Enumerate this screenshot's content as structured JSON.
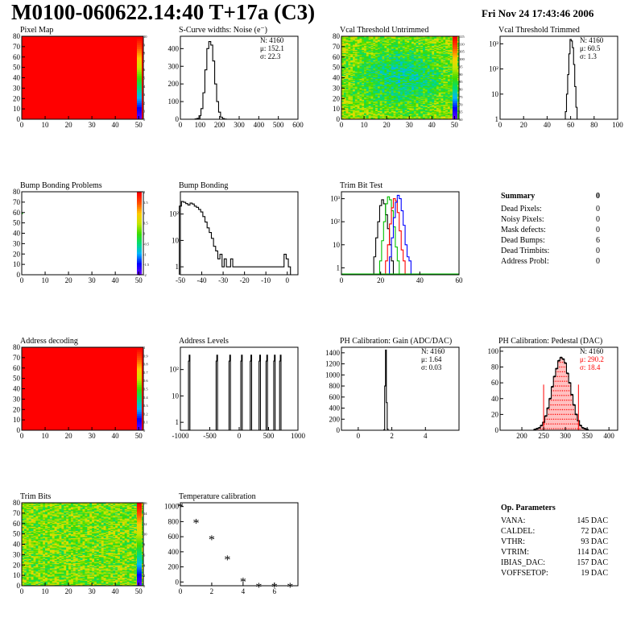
{
  "header": {
    "title": "M0100-060622.14:40 T+17a (C3)",
    "date": "Fri Nov 24 17:43:46 2006"
  },
  "colors": {
    "red": "#ff0000",
    "green": "#00c000",
    "blue": "#0000ff",
    "black": "#000000"
  },
  "palette_z": {
    "pixel_map": [
      "0",
      "1",
      "2",
      "3",
      "4",
      "5",
      "6",
      "7",
      "8",
      "9",
      "10"
    ],
    "vcal_untrimmed": [
      "60",
      "65",
      "70",
      "75",
      "80",
      "85",
      "90",
      "95",
      "100",
      "105",
      "110",
      "115"
    ],
    "bump_bonding_problems": [
      "-2",
      "-1.5",
      "-1",
      "-0.5",
      "0",
      "0.5",
      "1",
      "1.5",
      "2"
    ],
    "address_decoding": [
      "0",
      "0.1",
      "0.2",
      "0.3",
      "0.4",
      "0.5",
      "0.6",
      "0.7",
      "0.8",
      "0.9",
      "1"
    ],
    "trim_bits": [
      "0",
      "2",
      "4",
      "6",
      "8",
      "10",
      "12",
      "14",
      "16"
    ]
  },
  "chart_data": [
    {
      "id": "pixel_map",
      "type": "heatmap",
      "title": "Pixel Map",
      "xlim": [
        0,
        52
      ],
      "ylim": [
        0,
        80
      ],
      "xticks": [
        "0",
        "10",
        "20",
        "30",
        "40",
        "50"
      ],
      "yticks": [
        "0",
        "10",
        "20",
        "30",
        "40",
        "50",
        "60",
        "70",
        "80"
      ],
      "fill": "uniform",
      "value": 10
    },
    {
      "id": "scurve_noise",
      "type": "histogram",
      "title": "S-Curve widths: Noise (e⁻)",
      "xlim": [
        0,
        600
      ],
      "ylim": [
        0,
        470
      ],
      "xticks": [
        "0",
        "100",
        "200",
        "300",
        "400",
        "500",
        "600"
      ],
      "yticks": [
        "0",
        "100",
        "200",
        "300",
        "400"
      ],
      "stats": [
        "N: 4160",
        "μ: 152.1",
        "σ: 22.3"
      ],
      "x": [
        80,
        90,
        100,
        110,
        120,
        130,
        140,
        150,
        160,
        170,
        180,
        190,
        200,
        210,
        220,
        230
      ],
      "values": [
        2,
        5,
        20,
        60,
        150,
        280,
        400,
        440,
        420,
        330,
        200,
        100,
        40,
        12,
        4,
        1
      ]
    },
    {
      "id": "vcal_untrimmed",
      "type": "heatmap",
      "title": "Vcal Threshold Untrimmed",
      "xlim": [
        0,
        52
      ],
      "ylim": [
        0,
        80
      ],
      "xticks": [
        "0",
        "10",
        "20",
        "30",
        "40",
        "50"
      ],
      "yticks": [
        "0",
        "10",
        "20",
        "30",
        "40",
        "50",
        "60",
        "70",
        "80"
      ],
      "fill": "noise-green-cyan",
      "zrange": [
        60,
        115
      ]
    },
    {
      "id": "vcal_trimmed",
      "type": "histogram",
      "title": "Vcal Threshold Trimmed",
      "log_y": true,
      "xlim": [
        0,
        100
      ],
      "ylim": [
        1,
        2000
      ],
      "xticks": [
        "0",
        "20",
        "40",
        "60",
        "80",
        "100"
      ],
      "yticks": [
        "1",
        "10",
        "10²",
        "10³"
      ],
      "stats": [
        "N: 4160",
        "μ: 60.5",
        "σ: 1.3"
      ],
      "x": [
        56,
        57,
        58,
        59,
        60,
        61,
        62,
        63,
        64,
        65
      ],
      "values": [
        2,
        10,
        60,
        400,
        1500,
        1300,
        700,
        150,
        20,
        3
      ]
    },
    {
      "id": "bump_bonding_problems",
      "type": "heatmap",
      "title": "Bump Bonding Problems",
      "xlim": [
        0,
        52
      ],
      "ylim": [
        0,
        80
      ],
      "xticks": [
        "0",
        "10",
        "20",
        "30",
        "40",
        "50"
      ],
      "yticks": [
        "0",
        "10",
        "20",
        "30",
        "40",
        "50",
        "60",
        "70",
        "80"
      ],
      "fill": "empty"
    },
    {
      "id": "bump_bonding",
      "type": "histogram",
      "title": "Bump Bonding",
      "log_y": true,
      "xlim": [
        -50,
        5
      ],
      "ylim": [
        0.5,
        700
      ],
      "xticks": [
        "-50",
        "-40",
        "-30",
        "-20",
        "-10",
        "0"
      ],
      "yticks": [
        "1",
        "10",
        "10²"
      ],
      "x": [
        -50,
        -49,
        -48,
        -47,
        -46,
        -45,
        -44,
        -43,
        -42,
        -41,
        -40,
        -39,
        -38,
        -37,
        -36,
        -35,
        -34,
        -33,
        -32,
        -31,
        -30,
        -29,
        -28,
        -27,
        -26,
        -25,
        -2,
        -1,
        0,
        1
      ],
      "values": [
        200,
        300,
        280,
        250,
        220,
        260,
        240,
        200,
        180,
        150,
        120,
        80,
        50,
        30,
        20,
        12,
        6,
        4,
        2,
        3,
        1,
        2,
        1,
        1,
        2,
        1,
        1,
        3,
        2,
        1
      ]
    },
    {
      "id": "trim_bit_test",
      "type": "histogram",
      "title": "Trim Bit Test",
      "log_y": true,
      "xlim": [
        0,
        60
      ],
      "ylim": [
        0.5,
        2000
      ],
      "xticks": [
        "0",
        "20",
        "40",
        "60"
      ],
      "yticks": [
        "1",
        "10",
        "10²",
        "10³"
      ],
      "series": [
        {
          "color": "#000000",
          "x": [
            17,
            18,
            19,
            20,
            21,
            22,
            23,
            24,
            25,
            26
          ],
          "values": [
            3,
            20,
            100,
            500,
            900,
            600,
            200,
            50,
            10,
            2
          ]
        },
        {
          "color": "#00c000",
          "x": [
            20,
            21,
            22,
            23,
            24,
            25,
            26,
            27,
            28,
            29
          ],
          "values": [
            2,
            15,
            100,
            600,
            1200,
            900,
            300,
            60,
            8,
            2
          ]
        },
        {
          "color": "#ff0000",
          "x": [
            23,
            24,
            25,
            26,
            27,
            28,
            29,
            30,
            31,
            32
          ],
          "values": [
            2,
            10,
            80,
            400,
            1000,
            800,
            250,
            40,
            6,
            2
          ]
        },
        {
          "color": "#0000ff",
          "x": [
            25,
            26,
            27,
            28,
            29,
            30,
            31,
            32,
            33,
            34,
            35
          ],
          "values": [
            3,
            20,
            150,
            700,
            1400,
            1000,
            300,
            70,
            10,
            3,
            2
          ]
        }
      ]
    },
    {
      "id": "address_decoding",
      "type": "heatmap",
      "title": "Address decoding",
      "xlim": [
        0,
        52
      ],
      "ylim": [
        0,
        80
      ],
      "xticks": [
        "0",
        "10",
        "20",
        "30",
        "40",
        "50"
      ],
      "yticks": [
        "0",
        "10",
        "20",
        "30",
        "40",
        "50",
        "60",
        "70",
        "80"
      ],
      "fill": "uniform",
      "value": 1
    },
    {
      "id": "address_levels",
      "type": "histogram",
      "title": "Address Levels",
      "log_y": true,
      "xlim": [
        -1000,
        1000
      ],
      "ylim": [
        0.5,
        700
      ],
      "xticks": [
        "-1000",
        "-500",
        "0",
        "500",
        "1000"
      ],
      "yticks": [
        "1",
        "10",
        "10²"
      ],
      "peaks": [
        -850,
        -380,
        -160,
        40,
        200,
        350,
        470,
        600,
        700
      ],
      "peak_height": 350
    },
    {
      "id": "ph_gain",
      "type": "histogram",
      "title": "PH Calibration: Gain (ADC/DAC)",
      "xlim": [
        -1,
        6
      ],
      "ylim": [
        0,
        1500
      ],
      "xticks": [
        "0",
        "2",
        "4"
      ],
      "yticks": [
        "0",
        "200",
        "400",
        "600",
        "800",
        "1000",
        "1200",
        "1400"
      ],
      "stats": [
        "N: 4160",
        "μ: 1.64",
        "σ: 0.03"
      ],
      "x": [
        1.55,
        1.6,
        1.65,
        1.7,
        1.75
      ],
      "values": [
        10,
        800,
        1450,
        500,
        20
      ]
    },
    {
      "id": "ph_pedestal",
      "type": "histogram",
      "title": "PH Calibration: Pedestal (DAC)",
      "xlim": [
        150,
        420
      ],
      "ylim": [
        0,
        105
      ],
      "xticks": [
        "200",
        "250",
        "300",
        "350",
        "400"
      ],
      "yticks": [
        "0",
        "20",
        "40",
        "60",
        "80",
        "100"
      ],
      "stats": [
        "N: 4160"
      ],
      "stats_red": [
        "μ: 290.2",
        "σ: 18.4"
      ],
      "cut_lines": [
        250,
        330
      ],
      "x": [
        230,
        235,
        240,
        245,
        250,
        255,
        260,
        265,
        270,
        275,
        280,
        285,
        290,
        295,
        300,
        305,
        310,
        315,
        320,
        325,
        330,
        335,
        340,
        345,
        350
      ],
      "values": [
        1,
        2,
        3,
        6,
        10,
        18,
        28,
        40,
        55,
        68,
        78,
        88,
        92,
        90,
        85,
        72,
        60,
        45,
        32,
        20,
        12,
        6,
        3,
        2,
        1
      ]
    },
    {
      "id": "trim_bits",
      "type": "heatmap",
      "title": "Trim Bits",
      "xlim": [
        0,
        52
      ],
      "ylim": [
        0,
        80
      ],
      "xticks": [
        "0",
        "10",
        "20",
        "30",
        "40",
        "50"
      ],
      "yticks": [
        "0",
        "10",
        "20",
        "30",
        "40",
        "50",
        "60",
        "70",
        "80"
      ],
      "fill": "noise-green-yellow",
      "zrange": [
        0,
        16
      ]
    },
    {
      "id": "temperature_calibration",
      "type": "scatter",
      "title": "Temperature calibration",
      "xlim": [
        0,
        7.5
      ],
      "ylim": [
        -50,
        1050
      ],
      "xticks": [
        "0",
        "2",
        "4",
        "6"
      ],
      "yticks": [
        "0",
        "200",
        "400",
        "600",
        "800",
        "1000"
      ],
      "x": [
        0,
        1,
        2,
        3,
        4,
        5,
        6,
        7
      ],
      "values": [
        990,
        780,
        560,
        290,
        0,
        -70,
        -70,
        -70
      ]
    }
  ],
  "summary": {
    "title": "Summary",
    "total": "0",
    "rows": [
      {
        "label": "Dead Pixels:",
        "value": "0"
      },
      {
        "label": "Noisy Pixels:",
        "value": "0"
      },
      {
        "label": "Mask defects:",
        "value": "0"
      },
      {
        "label": "Dead Bumps:",
        "value": "6"
      },
      {
        "label": "Dead Trimbits:",
        "value": "0"
      },
      {
        "label": "Address Probl:",
        "value": "0"
      }
    ]
  },
  "op_params": {
    "title": "Op. Parameters",
    "rows": [
      {
        "label": "VANA:",
        "value": "145 DAC"
      },
      {
        "label": "CALDEL:",
        "value": "72 DAC"
      },
      {
        "label": "VTHR:",
        "value": "93 DAC"
      },
      {
        "label": "VTRIM:",
        "value": "114 DAC"
      },
      {
        "label": "IBIAS_DAC:",
        "value": "157 DAC"
      },
      {
        "label": "VOFFSETOP:",
        "value": "19 DAC"
      }
    ]
  }
}
